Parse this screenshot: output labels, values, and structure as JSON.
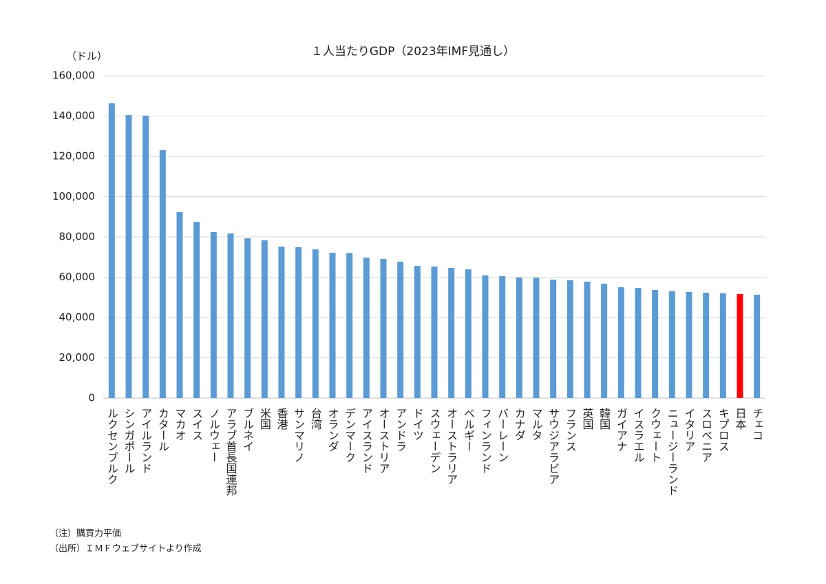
{
  "chart_data": {
    "type": "bar",
    "title": "１人当たりGDP（2023年IMF見通し）",
    "y_unit": "（ドル）",
    "notes": [
      "（注）購買力平価",
      "（出所）ＩＭＦウェブサイトより作成"
    ],
    "categories": [
      "ルクセンブルク",
      "シンガポール",
      "アイルランド",
      "カタール",
      "マカオ",
      "スイス",
      "ノルウェー",
      "アラブ首長国連邦",
      "ブルネイ",
      "米国",
      "香港",
      "サンマリノ",
      "台湾",
      "オランダ",
      "デンマーク",
      "アイスランド",
      "オーストリア",
      "アンドラ",
      "ドイツ",
      "スウェーデン",
      "オーストラリア",
      "ベルギー",
      "フィンランド",
      "バーレーン",
      "カナダ",
      "マルタ",
      "サウジアラビア",
      "フランス",
      "英国",
      "韓国",
      "ガイアナ",
      "イスラエル",
      "クウェート",
      "ニュージーランド",
      "イタリア",
      "スロベニア",
      "キプロス",
      "日本",
      "チェコ"
    ],
    "values": [
      146300,
      140500,
      140200,
      123100,
      92300,
      87500,
      82400,
      81700,
      79300,
      78300,
      75200,
      74900,
      73800,
      72100,
      72000,
      69700,
      69100,
      67700,
      65600,
      65300,
      64600,
      63900,
      60900,
      60500,
      59800,
      59700,
      58800,
      58500,
      57800,
      56800,
      55000,
      54700,
      53700,
      53000,
      52700,
      52300,
      52000,
      51600,
      51300
    ],
    "colors": [
      "#5b9bd5",
      "#5b9bd5",
      "#5b9bd5",
      "#5b9bd5",
      "#5b9bd5",
      "#5b9bd5",
      "#5b9bd5",
      "#5b9bd5",
      "#5b9bd5",
      "#5b9bd5",
      "#5b9bd5",
      "#5b9bd5",
      "#5b9bd5",
      "#5b9bd5",
      "#5b9bd5",
      "#5b9bd5",
      "#5b9bd5",
      "#5b9bd5",
      "#5b9bd5",
      "#5b9bd5",
      "#5b9bd5",
      "#5b9bd5",
      "#5b9bd5",
      "#5b9bd5",
      "#5b9bd5",
      "#5b9bd5",
      "#5b9bd5",
      "#5b9bd5",
      "#5b9bd5",
      "#5b9bd5",
      "#5b9bd5",
      "#5b9bd5",
      "#5b9bd5",
      "#5b9bd5",
      "#5b9bd5",
      "#5b9bd5",
      "#5b9bd5",
      "#ff0000",
      "#5b9bd5"
    ],
    "ylim": [
      0,
      160000
    ],
    "yticks": [
      0,
      {
        "value": 20000,
        "label": "20,000"
      },
      {
        "value": 40000,
        "label": "40,000"
      },
      {
        "value": 60000,
        "label": "60,000"
      },
      {
        "value": 80000,
        "label": "80,000"
      },
      {
        "value": 100000,
        "label": "100,000"
      },
      {
        "value": 120000,
        "label": "120,000"
      },
      {
        "value": 140000,
        "label": "140,000"
      },
      {
        "value": 160000,
        "label": "160,000"
      }
    ],
    "grid": true
  }
}
